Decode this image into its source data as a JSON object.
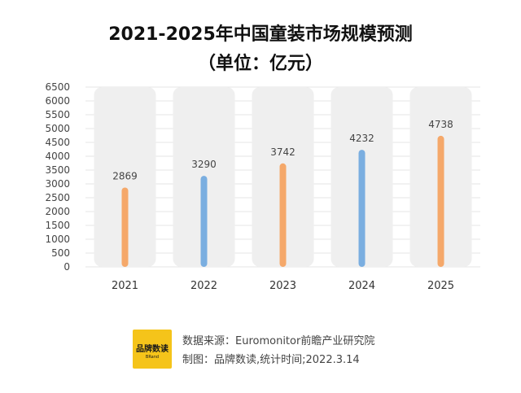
{
  "title_line1": "2021-2025年中国童装市场规模预测",
  "title_line2": "（单位：亿元）",
  "chart_data": {
    "type": "bar",
    "categories": [
      "2021",
      "2022",
      "2023",
      "2024",
      "2025"
    ],
    "values": [
      2869,
      3290,
      3742,
      4232,
      4738
    ],
    "bar_colors": [
      "#f5a86a",
      "#7aaee0",
      "#f5a86a",
      "#7aaee0",
      "#f5a86a"
    ],
    "y_ticks": [
      0,
      500,
      1000,
      1500,
      2000,
      2500,
      3000,
      3500,
      4000,
      4500,
      5000,
      5500,
      6000,
      6500
    ],
    "ylim": [
      0,
      6500
    ],
    "background_column_color": "#efefef",
    "grid": true
  },
  "footer": {
    "logo_text": "品牌数读",
    "logo_subtext": "BRand",
    "source": "数据来源：Euromonitor前瞻产业研究院",
    "maker": "制图：品牌数读,统计时间;2022.3.14"
  }
}
